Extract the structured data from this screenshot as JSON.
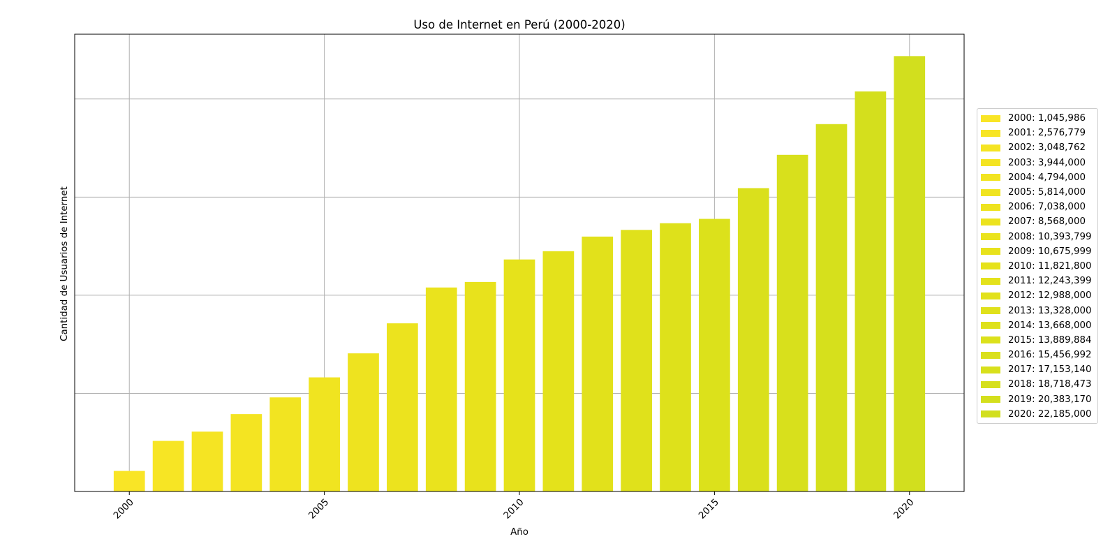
{
  "chart_data": {
    "type": "bar",
    "title": "Uso de Internet en Perú (2000-2020)",
    "xlabel": "Año",
    "ylabel": "Cantidad de Usuarios de Internet",
    "x_ticks": [
      "2000",
      "2005",
      "2010",
      "2015",
      "2020"
    ],
    "y_tick_labels_shown": false,
    "grid": true,
    "legend_position": "center-right outside plot",
    "ylim": [
      0,
      23300000
    ],
    "xlim": [
      1998.6,
      2021.4
    ],
    "categories": [
      2000,
      2001,
      2002,
      2003,
      2004,
      2005,
      2006,
      2007,
      2008,
      2009,
      2010,
      2011,
      2012,
      2013,
      2014,
      2015,
      2016,
      2017,
      2018,
      2019,
      2020
    ],
    "values": [
      1045986,
      2576779,
      3048762,
      3944000,
      4794000,
      5814000,
      7038000,
      8568000,
      10393799,
      10675999,
      11821800,
      12243399,
      12988000,
      13328000,
      13668000,
      13889884,
      15456992,
      17153140,
      18718473,
      20383170,
      22185000
    ],
    "legend_labels": [
      "2000: 1,045,986",
      "2001: 2,576,779",
      "2002: 3,048,762",
      "2003: 3,944,000",
      "2004: 4,794,000",
      "2005: 5,814,000",
      "2006: 7,038,000",
      "2007: 8,568,000",
      "2008: 10,393,799",
      "2009: 10,675,999",
      "2010: 11,821,800",
      "2011: 12,243,399",
      "2012: 12,988,000",
      "2013: 13,328,000",
      "2014: 13,668,000",
      "2015: 13,889,884",
      "2016: 15,456,992",
      "2017: 17,153,140",
      "2018: 18,718,473",
      "2019: 20,383,170",
      "2020: 22,185,000"
    ],
    "colors": [
      "#f9e526",
      "#f7e524",
      "#f5e423",
      "#f4e422",
      "#f2e421",
      "#f0e420",
      "#eee31f",
      "#ece31e",
      "#eae31d",
      "#e8e21c",
      "#e6e21b",
      "#e4e21b",
      "#e2e11b",
      "#e0e11b",
      "#dee11b",
      "#dce11b",
      "#dae01c",
      "#d8e01c",
      "#d6e01c",
      "#d4df1d",
      "#d2df1e"
    ]
  }
}
